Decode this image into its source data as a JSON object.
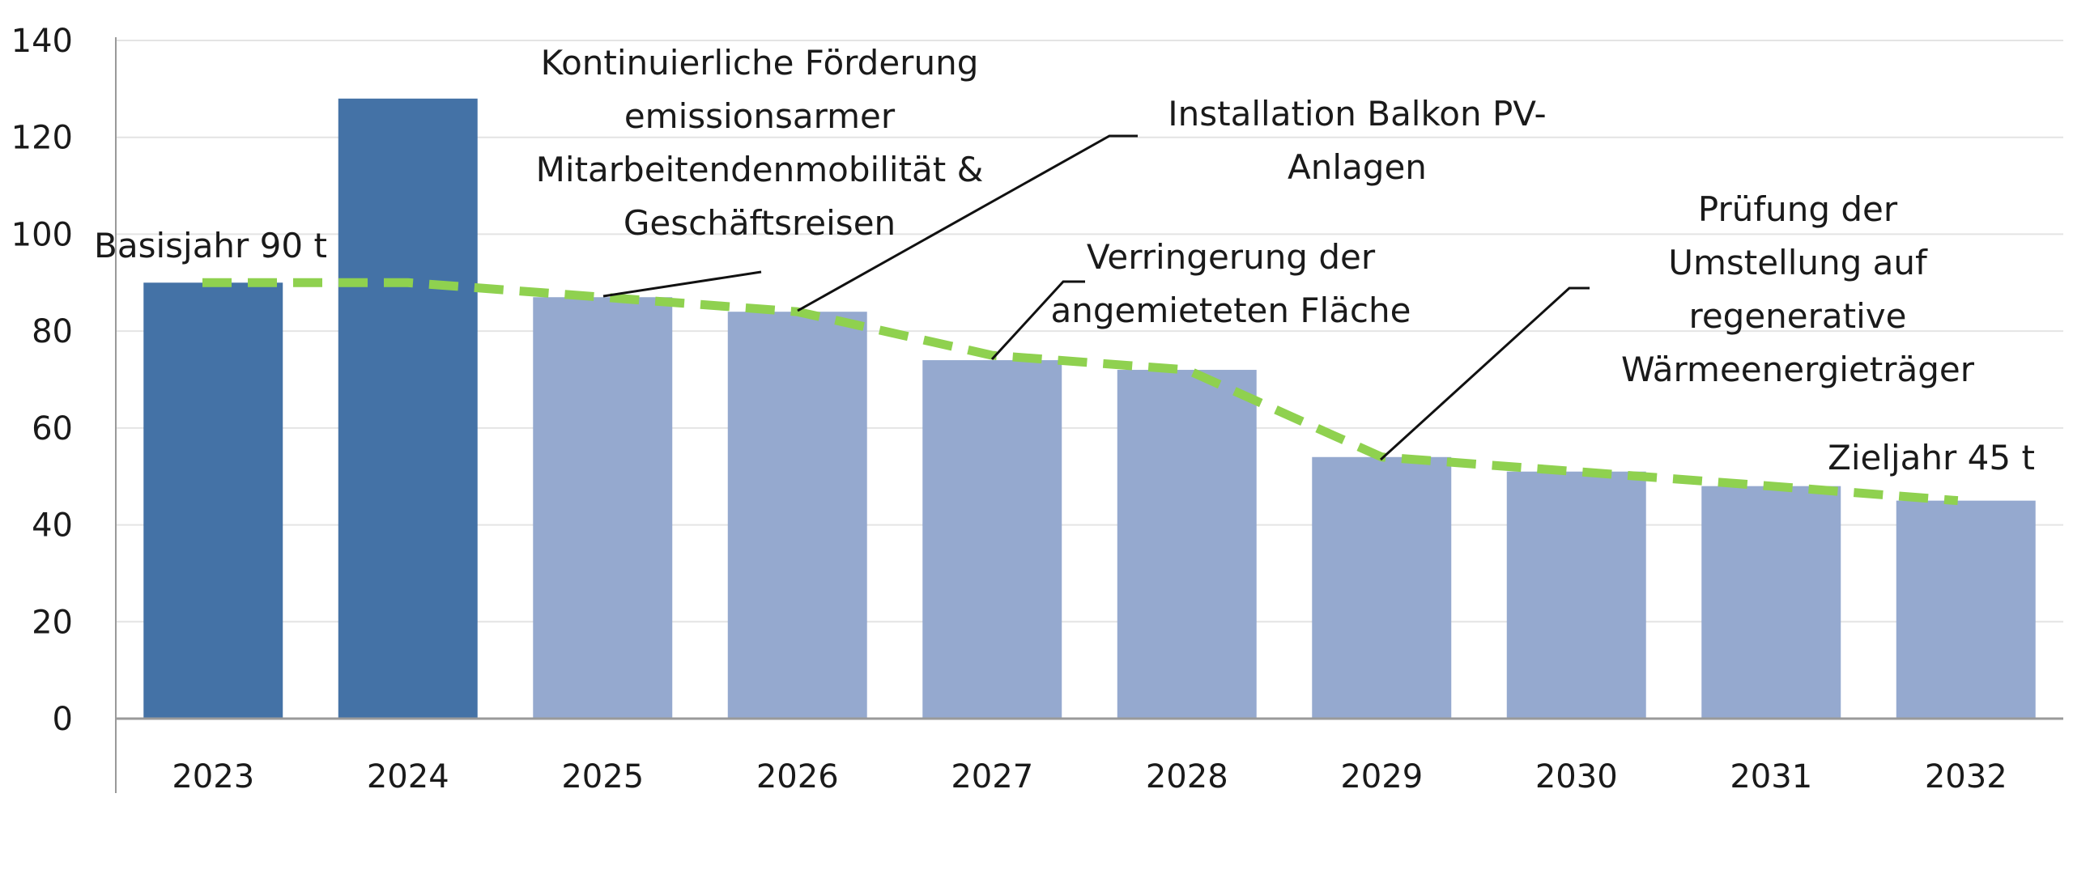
{
  "chart_data": {
    "type": "bar",
    "title": "",
    "xlabel": "",
    "ylabel": "",
    "ylim": [
      0,
      140
    ],
    "yticks": [
      0,
      20,
      40,
      60,
      80,
      100,
      120,
      140
    ],
    "grid": true,
    "categories": [
      "2023",
      "2024",
      "2025",
      "2026",
      "2027",
      "2028",
      "2029",
      "2030",
      "2031",
      "2032"
    ],
    "values": [
      90,
      128,
      87,
      84,
      74,
      72,
      54,
      51,
      48,
      45
    ],
    "bar_colors": [
      "#4472a6",
      "#4472a6",
      "#95a9cf",
      "#95a9cf",
      "#95a9cf",
      "#95a9cf",
      "#95a9cf",
      "#95a9cf",
      "#95a9cf",
      "#95a9cf"
    ],
    "trend_line": {
      "style": "dashed",
      "color": "#8fd14f",
      "points": [
        {
          "x": "2023",
          "y": 90
        },
        {
          "x": "2024",
          "y": 90
        },
        {
          "x": "2025",
          "y": 87
        },
        {
          "x": "2026",
          "y": 84
        },
        {
          "x": "2027",
          "y": 75
        },
        {
          "x": "2028",
          "y": 72
        },
        {
          "x": "2029",
          "y": 54
        },
        {
          "x": "2030",
          "y": 51
        },
        {
          "x": "2031",
          "y": 48
        },
        {
          "x": "2032",
          "y": 45
        }
      ]
    },
    "annotations": [
      {
        "id": "basisjahr",
        "lines": [
          "Basisjahr 90 t"
        ],
        "target": {
          "x": "2023",
          "y": 90
        }
      },
      {
        "id": "foerderung",
        "lines": [
          "Kontinuierliche Förderung",
          "emissionsarmer",
          "Mitarbeitendenmobilität &",
          "Geschäftsreisen"
        ],
        "target": {
          "x": "2025",
          "y": 87
        }
      },
      {
        "id": "balkon-pv",
        "lines": [
          "Installation Balkon PV-",
          "Anlagen"
        ],
        "target": {
          "x": "2026",
          "y": 84
        }
      },
      {
        "id": "flaeche",
        "lines": [
          "Verringerung der",
          "angemieteten Fläche"
        ],
        "target": {
          "x": "2027",
          "y": 75
        }
      },
      {
        "id": "waerme",
        "lines": [
          "Prüfung der",
          "Umstellung auf",
          "regenerative",
          "Wärmeenergieträger"
        ],
        "target": {
          "x": "2029",
          "y": 54
        }
      },
      {
        "id": "zieljahr",
        "lines": [
          "Zieljahr 45 t"
        ],
        "target": {
          "x": "2032",
          "y": 45
        }
      }
    ]
  }
}
